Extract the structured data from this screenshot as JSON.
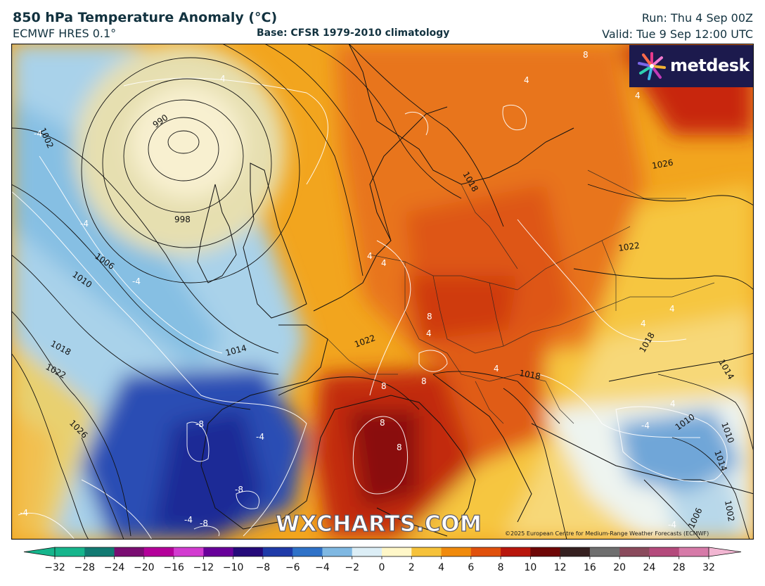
{
  "header": {
    "title": "850 hPa Temperature Anomaly (°C)",
    "model": "ECMWF HRES 0.1°",
    "base": "Base: CFSR 1979-2010 climatology",
    "run": "Run: Thu 4 Sep 00Z",
    "valid": "Valid: Tue 9 Sep 12:00 UTC"
  },
  "branding": {
    "logo_text": "metdesk",
    "watermark": "WXCHARTS.COM",
    "copyright": "©2025 European Centre for Medium-Range Weather Forecasts (ECMWF)"
  },
  "isobar_labels": [
    "990",
    "998",
    "1006",
    "1010",
    "1014",
    "1018",
    "1022",
    "1026",
    "1002",
    "1022",
    "1018",
    "1022",
    "1026",
    "1018",
    "1014",
    "1010",
    "1006",
    "1002",
    "1014",
    "1010",
    "1018"
  ],
  "anomaly_labels": [
    "-8",
    "-8",
    "-8",
    "-4",
    "-4",
    "-4",
    "-4",
    "-4",
    "-4",
    "-4",
    "4",
    "4",
    "4",
    "4",
    "4",
    "4",
    "4",
    "4",
    "8",
    "8",
    "8",
    "8",
    "8",
    "8",
    "4",
    "4",
    "-4"
  ],
  "colorbar": {
    "ticks": [
      "−32",
      "−28",
      "−24",
      "−20",
      "−16",
      "−12",
      "−10",
      "−8",
      "−6",
      "−4",
      "−2",
      "0",
      "2",
      "4",
      "6",
      "8",
      "10",
      "12",
      "16",
      "20",
      "24",
      "28",
      "32"
    ],
    "colors": [
      "#16b58c",
      "#127a72",
      "#7a0d72",
      "#b4009a",
      "#d23bd0",
      "#68009a",
      "#250a7a",
      "#1f3aa8",
      "#2f72c8",
      "#7fb8e2",
      "#dceef6",
      "#fff7c8",
      "#f6c23a",
      "#f08a0c",
      "#e0500c",
      "#b8160c",
      "#6e0606",
      "#352020",
      "#6e6e6e",
      "#8a4a5c",
      "#b44a7c",
      "#d67aa8",
      "#f2b6d2"
    ]
  }
}
